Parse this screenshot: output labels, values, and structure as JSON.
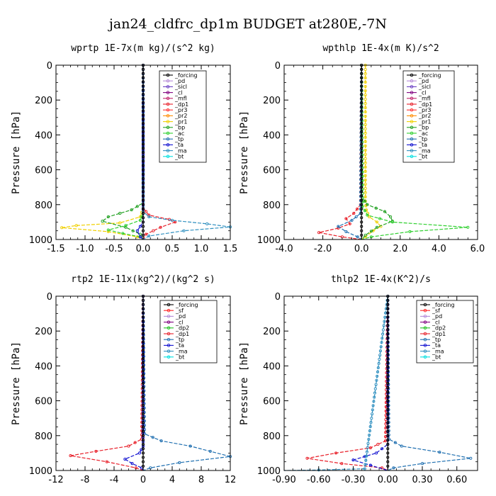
{
  "title": "jan24_cldfrc_dp1m  BUDGET at280E,-7N",
  "colors": {
    "_forcing": "#000000",
    "_pd": "#b58ad8",
    "_sicl": "#6a3fc4",
    "_cl": "#800080",
    "_mfl": "#c0206b",
    "_dp1": "#e8202a",
    "_pr3": "#ff3030",
    "_pr2": "#ff8c00",
    "_pr1": "#f0d000",
    "_bp": "#20a020",
    "_ac": "#30d030",
    "_tp": "#1f6fb0",
    "_ta": "#1010d0",
    "_ma": "#3090c0",
    "_bt": "#00e0e0",
    "_sf": "#ff2020",
    "_dp2": "#20c020"
  },
  "chart_data": [
    {
      "type": "line",
      "title": "wprtp  1E-7x(m kg)/(s^2 kg)",
      "ylabel": "Pressure [hPa]",
      "xlabel": "",
      "xlim": [
        -1.5,
        1.5
      ],
      "ylim": [
        1000,
        0
      ],
      "xticks": [
        "-1.5",
        "-1.0",
        "-0.5",
        "0.0",
        "0.5",
        "1.0",
        "1.5"
      ],
      "xtick_values": [
        -1.5,
        -1.0,
        -0.5,
        0.0,
        0.5,
        1.0,
        1.5
      ],
      "yticks": [
        "0",
        "200",
        "400",
        "600",
        "800",
        "1000"
      ],
      "legend": [
        "_forcing",
        "_pd",
        "_sicl",
        "_cl",
        "_mfl",
        "_dp1",
        "_pr3",
        "_pr2",
        "_pr1",
        "_bp",
        "_ac",
        "_tp",
        "_ta",
        "_ma",
        "_bt"
      ],
      "series": [
        {
          "name": "_pr1",
          "x": [
            0,
            0,
            -0.05,
            -0.4,
            -1.15,
            -1.4,
            -0.6,
            -0.1,
            0
          ],
          "y": [
            0,
            820,
            870,
            905,
            920,
            932,
            955,
            985,
            1000
          ]
        },
        {
          "name": "_bp",
          "x": [
            0,
            0,
            -0.2,
            -0.6,
            -0.7,
            -0.3,
            -0.05,
            0
          ],
          "y": [
            0,
            790,
            830,
            870,
            895,
            930,
            970,
            1000
          ]
        },
        {
          "name": "_ac",
          "x": [
            0,
            0,
            -0.05,
            -0.3,
            -0.6,
            -0.35,
            -0.05,
            0
          ],
          "y": [
            0,
            850,
            890,
            920,
            945,
            965,
            985,
            1000
          ]
        },
        {
          "name": "_dp1",
          "x": [
            0,
            0,
            0.1,
            0.45,
            0.55,
            0.3,
            0.05,
            0
          ],
          "y": [
            0,
            820,
            860,
            885,
            900,
            930,
            970,
            1000
          ]
        },
        {
          "name": "_ma",
          "x": [
            0,
            0,
            0.1,
            0.5,
            1.1,
            1.5,
            0.7,
            0.1,
            0
          ],
          "y": [
            0,
            840,
            870,
            890,
            910,
            928,
            950,
            980,
            1000
          ]
        },
        {
          "name": "_ta",
          "x": [
            0,
            0,
            -0.1,
            -0.05,
            0
          ],
          "y": [
            0,
            900,
            950,
            985,
            1000
          ]
        },
        {
          "name": "_forcing",
          "x": [
            0,
            0,
            0,
            0
          ],
          "y": [
            0,
            500,
            900,
            1000
          ]
        }
      ]
    },
    {
      "type": "line",
      "title": "wpthlp  1E-4x(m K)/s^2",
      "ylabel": "Pressure [hPa]",
      "xlabel": "",
      "xlim": [
        -4.0,
        6.0
      ],
      "ylim": [
        1000,
        0
      ],
      "xticks": [
        "-4.0",
        "-2.0",
        "0.0",
        "2.0",
        "4.0",
        "6.0"
      ],
      "xtick_values": [
        -4.0,
        -2.0,
        0.0,
        2.0,
        4.0,
        6.0
      ],
      "yticks": [
        "0",
        "200",
        "400",
        "600",
        "800",
        "1000"
      ],
      "legend": [
        "_forcing",
        "_pd",
        "_sicl",
        "_cl",
        "_mfl",
        "_dp1",
        "_pr3",
        "_pr2",
        "_pr1",
        "_bp",
        "_ac",
        "_tp",
        "_ta",
        "_ma",
        "_bt"
      ],
      "series": [
        {
          "name": "_pr1",
          "x": [
            0.2,
            0.2,
            0.25,
            0.4,
            0.8,
            1.0,
            0.6,
            0.2,
            0
          ],
          "y": [
            0,
            780,
            830,
            870,
            900,
            925,
            950,
            985,
            1000
          ]
        },
        {
          "name": "_bp",
          "x": [
            0,
            0.05,
            0.3,
            1.2,
            1.5,
            1.6,
            0.8,
            0.2,
            0
          ],
          "y": [
            0,
            760,
            800,
            840,
            870,
            895,
            930,
            975,
            1000
          ]
        },
        {
          "name": "_ac",
          "x": [
            0,
            0.05,
            0.3,
            1.6,
            5.5,
            2.5,
            0.5,
            0
          ],
          "y": [
            0,
            810,
            860,
            900,
            930,
            955,
            985,
            1000
          ]
        },
        {
          "name": "_dp1",
          "x": [
            0,
            -0.05,
            -0.4,
            -0.8,
            -0.6,
            -1.2,
            -2.2,
            -1.0,
            0
          ],
          "y": [
            0,
            800,
            850,
            880,
            910,
            935,
            960,
            985,
            1000
          ]
        },
        {
          "name": "_tp",
          "x": [
            0,
            -0.05,
            -0.5,
            -1.2,
            -0.8,
            -0.2,
            0
          ],
          "y": [
            0,
            850,
            890,
            925,
            955,
            985,
            1000
          ]
        },
        {
          "name": "_forcing",
          "x": [
            0,
            0,
            0,
            0
          ],
          "y": [
            0,
            500,
            900,
            1000
          ]
        }
      ]
    },
    {
      "type": "line",
      "title": "rtp2  1E-11x(kg^2)/(kg^2 s)",
      "ylabel": "Pressure [hPa]",
      "xlabel": "",
      "xlim": [
        -12,
        12
      ],
      "ylim": [
        1000,
        0
      ],
      "xticks": [
        "-12",
        "-8",
        "-4",
        "0",
        "4",
        "8",
        "12"
      ],
      "xtick_values": [
        -12,
        -8,
        -4,
        0,
        4,
        8,
        12
      ],
      "yticks": [
        "0",
        "200",
        "400",
        "600",
        "800",
        "1000"
      ],
      "legend": [
        "_forcing",
        "_sf",
        "_pd",
        "_cl",
        "_dp2",
        "_dp1",
        "_tp",
        "_ta",
        "_ma",
        "_bt"
      ],
      "series": [
        {
          "name": "_dp1",
          "x": [
            0,
            -0.2,
            -2,
            -6.5,
            -10,
            -5,
            -1,
            0
          ],
          "y": [
            0,
            820,
            860,
            890,
            915,
            950,
            985,
            1000
          ]
        },
        {
          "name": "_tp",
          "x": [
            0,
            0.2,
            2.5,
            6.5,
            12,
            5,
            1,
            0
          ],
          "y": [
            0,
            790,
            830,
            860,
            920,
            955,
            985,
            1000
          ]
        },
        {
          "name": "_ta",
          "x": [
            0,
            0,
            -0.5,
            -2.5,
            -1.5,
            -0.2,
            0
          ],
          "y": [
            0,
            860,
            900,
            935,
            960,
            985,
            1000
          ]
        },
        {
          "name": "_forcing",
          "x": [
            0,
            0,
            0,
            0
          ],
          "y": [
            0,
            500,
            900,
            1000
          ]
        }
      ]
    },
    {
      "type": "line",
      "title": "thlp2  1E-4x(K^2)/s",
      "ylabel": "Pressure [hPa]",
      "xlabel": "",
      "xlim": [
        -0.9,
        0.78
      ],
      "ylim": [
        1000,
        0
      ],
      "xticks": [
        "-0.90",
        "-0.60",
        "-0.30",
        "0.00",
        "0.30",
        "0.60"
      ],
      "xtick_values": [
        -0.9,
        -0.6,
        -0.3,
        0.0,
        0.3,
        0.6
      ],
      "yticks": [
        "0",
        "200",
        "400",
        "600",
        "800",
        "1000"
      ],
      "legend": [
        "_forcing",
        "_sf",
        "_pd",
        "_cl",
        "_dp2",
        "_dp1",
        "_tp",
        "_ta",
        "_ma",
        "_bt"
      ],
      "series": [
        {
          "name": "_dp1",
          "x": [
            0,
            -0.02,
            -0.15,
            -0.45,
            -0.7,
            -0.4,
            -0.05,
            0
          ],
          "y": [
            0,
            830,
            870,
            900,
            930,
            960,
            985,
            1000
          ]
        },
        {
          "name": "_tp",
          "x": [
            0,
            0.01,
            0.12,
            0.45,
            0.72,
            0.3,
            0.05,
            0
          ],
          "y": [
            0,
            820,
            860,
            895,
            930,
            960,
            985,
            1000
          ]
        },
        {
          "name": "_ta",
          "x": [
            0,
            0,
            -0.1,
            -0.3,
            -0.15,
            0
          ],
          "y": [
            0,
            850,
            900,
            940,
            970,
            1000
          ]
        },
        {
          "name": "_ma",
          "x": [
            0,
            -0.2,
            -0.6,
            -0.9
          ],
          "y": [
            0,
            990,
            997,
            1000
          ]
        },
        {
          "name": "_forcing",
          "x": [
            0,
            0,
            0,
            0
          ],
          "y": [
            0,
            500,
            900,
            1000
          ]
        }
      ]
    }
  ]
}
